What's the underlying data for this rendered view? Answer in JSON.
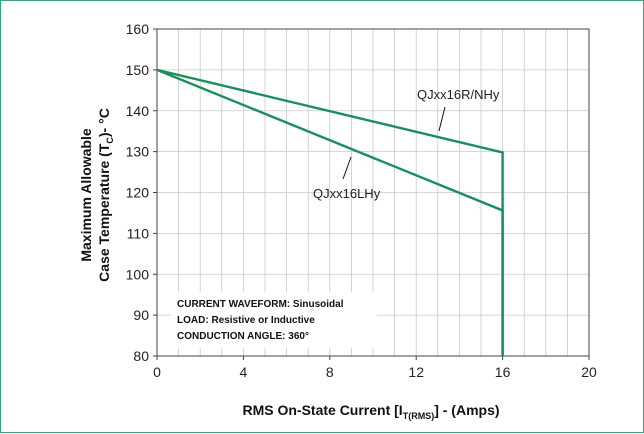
{
  "chart_data": {
    "type": "line",
    "title": "",
    "xlabel_main": "RMS On-State  Current [I",
    "xlabel_sub": "T(RMS)",
    "xlabel_end": "] - (Amps)",
    "ylabel_line1": "Maximum Allowable",
    "ylabel_line2_start": "Case Temperature (T",
    "ylabel_line2_sub": "C",
    "ylabel_line2_end": ")- °C",
    "xlim": [
      0,
      20
    ],
    "ylim": [
      80,
      160
    ],
    "x_ticks": [
      "0",
      "4",
      "8",
      "12",
      "16",
      "20"
    ],
    "y_ticks": [
      "80",
      "90",
      "100",
      "110",
      "120",
      "130",
      "140",
      "150",
      "160"
    ],
    "grid": true,
    "line_color": "#1a8f5c",
    "series": [
      {
        "name": "QJxx16R/NHy",
        "points": [
          [
            0,
            150
          ],
          [
            16,
            129.8
          ],
          [
            16,
            80
          ]
        ]
      },
      {
        "name": "QJxx16LHy",
        "points": [
          [
            0,
            150
          ],
          [
            16,
            115.6
          ],
          [
            16,
            80
          ]
        ]
      }
    ],
    "annotations": [
      {
        "text": "QJxx16R/NHy",
        "series": 0
      },
      {
        "text": "QJxx16LHy",
        "series": 1
      }
    ],
    "note_lines": [
      "CURRENT WAVEFORM: Sinusoidal",
      "LOAD: Resistive or Inductive",
      "CONDUCTION ANGLE: 360°"
    ]
  }
}
